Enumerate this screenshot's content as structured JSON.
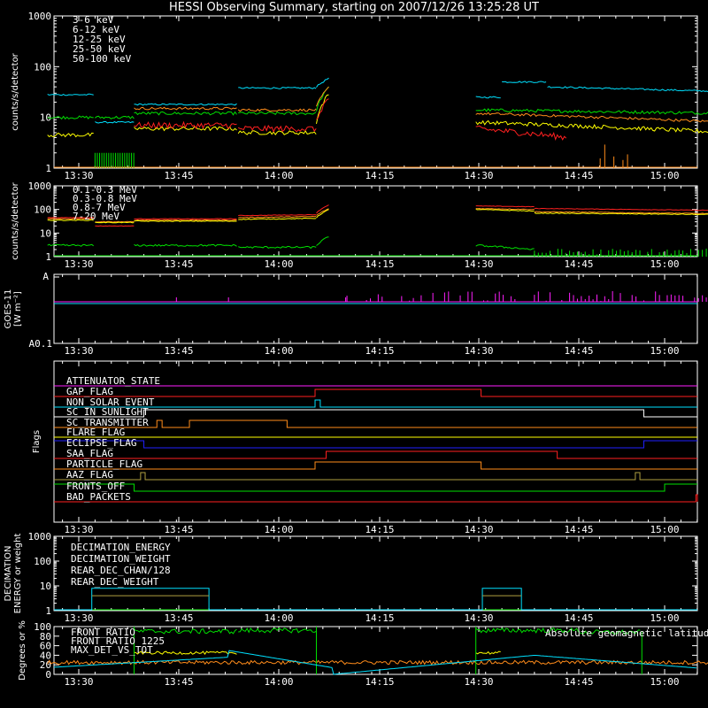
{
  "title": "HESSI Observing Summary, starting on 2007/12/26 13:25:28 UT",
  "colors": {
    "red": "#ff2020",
    "orange": "#ff8c1a",
    "yellow": "#ffff00",
    "green": "#00e000",
    "cyan": "#00e0ff",
    "magenta": "#ff20ff",
    "blue": "#2020ff",
    "olive": "#b0a040",
    "white": "#ffffff"
  },
  "x_ticks": [
    "13:30",
    "13:45",
    "14:00",
    "14:15",
    "14:30",
    "14:45",
    "15:00"
  ],
  "chart_data": [
    {
      "type": "line",
      "name": "count-rates-low",
      "ylabel": "counts/s/detector",
      "ylog": true,
      "yticks": [
        "1",
        "10",
        "100",
        "1000"
      ],
      "series": [
        {
          "name": "3-6 keV",
          "color": "#ff2020"
        },
        {
          "name": "6-12 keV",
          "color": "#ff8c1a"
        },
        {
          "name": "12-25 keV",
          "color": "#ffff00"
        },
        {
          "name": "25-50 keV",
          "color": "#00e000"
        },
        {
          "name": "50-100 keV",
          "color": "#00e0ff"
        }
      ]
    },
    {
      "type": "line",
      "name": "count-rates-high",
      "ylabel": "counts/s/detector",
      "ylog": true,
      "yticks": [
        "1",
        "10",
        "100",
        "1000"
      ],
      "series": [
        {
          "name": "0.1-0.3 MeV",
          "color": "#ff2020"
        },
        {
          "name": "0.3-0.8 MeV",
          "color": "#ff8c1a"
        },
        {
          "name": "0.8-7 MeV",
          "color": "#ffff00"
        },
        {
          "name": "7-20 MeV",
          "color": "#00e000"
        }
      ]
    },
    {
      "type": "line",
      "name": "goes",
      "ylabel_1": "GOES-11",
      "ylabel_2": "[W m⁻²]",
      "yticks": [
        "A",
        "A0.1"
      ]
    },
    {
      "type": "line",
      "name": "flags",
      "ylabel": "Flags",
      "flags": [
        {
          "name": "ATTENUATOR_STATE",
          "color": "#ff20ff"
        },
        {
          "name": "GAP_FLAG",
          "color": "#ff2020"
        },
        {
          "name": "NON_SOLAR_EVENT",
          "color": "#00e0ff"
        },
        {
          "name": "SC_IN_SUNLIGHT",
          "color": "#ffffff"
        },
        {
          "name": "SC_TRANSMITTER",
          "color": "#ff8c1a"
        },
        {
          "name": "FLARE_FLAG",
          "color": "#ffff00"
        },
        {
          "name": "ECLIPSE_FLAG",
          "color": "#2020ff"
        },
        {
          "name": "SAA_FLAG",
          "color": "#ff2020"
        },
        {
          "name": "PARTICLE_FLAG",
          "color": "#ff8c1a"
        },
        {
          "name": "AAZ_FLAG",
          "color": "#b0a040"
        },
        {
          "name": "FRONTS_OFF",
          "color": "#00e000"
        },
        {
          "name": "BAD_PACKETS",
          "color": "#ff2020"
        }
      ]
    },
    {
      "type": "line",
      "name": "decimation",
      "ylabel_1": "DECIMATION",
      "ylabel_2": "ENERGY or weight",
      "ylog": true,
      "yticks": [
        "1",
        "10",
        "100",
        "1000"
      ],
      "series": [
        {
          "name": "DECIMATION_ENERGY",
          "color": "#00e000"
        },
        {
          "name": "DECIMATION_WEIGHT",
          "color": "#ff8c1a"
        },
        {
          "name": "REAR_DEC_CHAN/128",
          "color": "#00e0ff"
        },
        {
          "name": "REAR_DEC_WEIGHT",
          "color": "#b0a040"
        }
      ]
    },
    {
      "type": "line",
      "name": "ratios",
      "ylabel": "Degrees or %",
      "yticks": [
        "0",
        "20",
        "40",
        "60",
        "80",
        "100"
      ],
      "series": [
        {
          "name": "FRONT_RATIO",
          "color": "#ffff00"
        },
        {
          "name": "FRONT_RATIO_1225",
          "color": "#00e000"
        },
        {
          "name": "MAX_DET_VS_TOT",
          "color": "#ff8c1a"
        },
        {
          "name": "Absolute geomagnetic latitude",
          "color": "#00e0ff"
        }
      ]
    }
  ]
}
